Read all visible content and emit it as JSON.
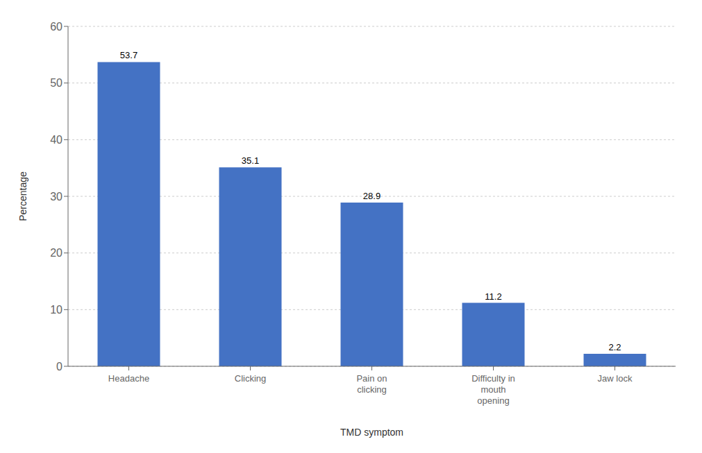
{
  "chart_data": {
    "type": "bar",
    "categories": [
      "Headache",
      "Clicking",
      "Pain on\nclicking",
      "Difficulty in\nmouth\nopening",
      "Jaw lock"
    ],
    "values": [
      53.7,
      35.1,
      28.9,
      11.2,
      2.2
    ],
    "color": "#4472C4",
    "xlabel": "TMD symptom",
    "ylabel": "Percentage",
    "ylim": [
      0,
      60
    ],
    "yticks": [
      0,
      10,
      20,
      30,
      40,
      50,
      60
    ],
    "grid": true,
    "data_labels": true
  }
}
